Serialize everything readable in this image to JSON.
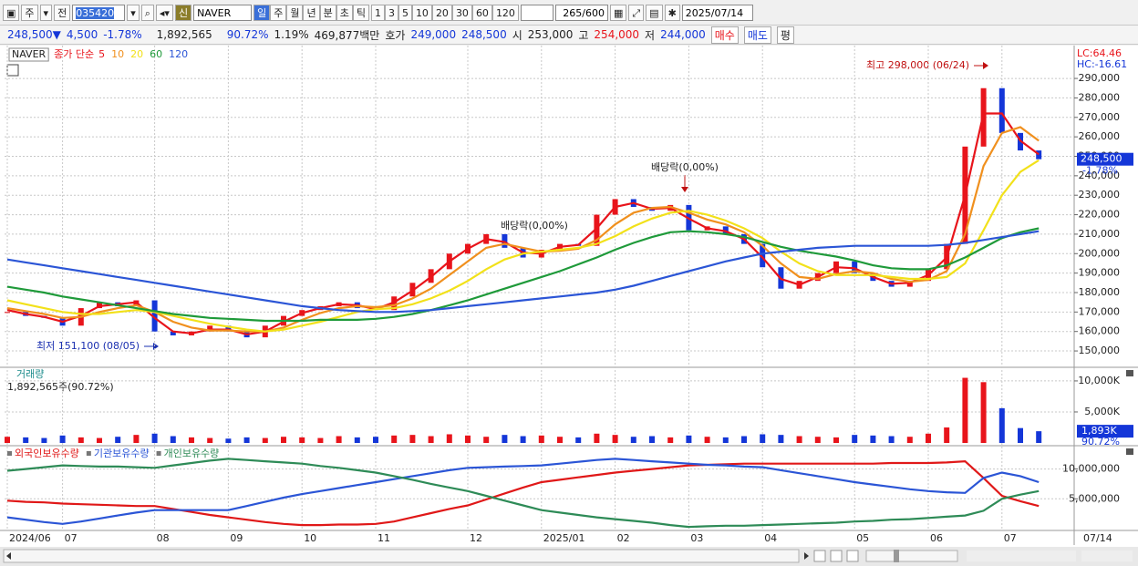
{
  "toolbar": {
    "period_prefix": "주",
    "market": "전",
    "code": "035420",
    "new_badge": "신",
    "name": "NAVER",
    "periods": [
      "일",
      "주",
      "월",
      "년",
      "분",
      "초",
      "틱"
    ],
    "intervals": [
      "1",
      "3",
      "5",
      "10",
      "20",
      "30",
      "60",
      "120"
    ],
    "count": "265",
    "max_count": "/600",
    "date": "2025/07/14"
  },
  "info_bar": {
    "price": "248,500",
    "direction": "▼",
    "change": "4,500",
    "change_pct": "-1.78%",
    "volume": "1,892,565",
    "volume_ratio": "90.72%",
    "turnover": "1.19%",
    "amount": "469,877백만",
    "quote_label": "호가",
    "ask": "249,000",
    "bid": "248,500",
    "open_label": "시",
    "open": "253,000",
    "high_label": "고",
    "high": "254,000",
    "low_label": "저",
    "low": "244,000",
    "buy": "매수",
    "sell": "매도",
    "avg": "평"
  },
  "chart_data": [
    {
      "type": "stock",
      "ma_label": "종가 단순",
      "categories": [
        "2024/06",
        null,
        null,
        "07",
        null,
        null,
        null,
        null,
        "08",
        null,
        null,
        null,
        "09",
        null,
        null,
        null,
        "10",
        null,
        null,
        null,
        "11",
        null,
        null,
        null,
        null,
        "12",
        null,
        null,
        null,
        "2025/01",
        null,
        null,
        null,
        "02",
        null,
        null,
        null,
        "03",
        null,
        null,
        null,
        "04",
        null,
        null,
        null,
        null,
        "05",
        null,
        null,
        null,
        "06",
        null,
        null,
        null,
        "07",
        null,
        null
      ],
      "x_end_label": "07/14",
      "series": [
        {
          "name": "NAVER",
          "up_color": "#e8141b",
          "down_color": "#1436d8",
          "values": [
            170000,
            168000,
            167000,
            163000,
            172000,
            175000,
            173000,
            176000,
            160000,
            158000,
            160000,
            163000,
            160000,
            157000,
            163000,
            168000,
            171000,
            173000,
            175000,
            172000,
            171000,
            178000,
            185000,
            192000,
            200000,
            205000,
            210000,
            203000,
            198000,
            202000,
            205000,
            204000,
            220000,
            228000,
            224000,
            222000,
            225000,
            212000,
            214000,
            210000,
            205000,
            193000,
            182000,
            186000,
            190000,
            196000,
            190000,
            186000,
            183000,
            186000,
            192000,
            205000,
            255000,
            285000,
            262000,
            253000,
            248500
          ]
        },
        {
          "name": "5",
          "color": "#e8141b",
          "values": [
            171000,
            169000,
            167500,
            165000,
            168000,
            173000,
            174000,
            175000,
            167000,
            160000,
            159000,
            161000,
            161000,
            158500,
            160000,
            165000,
            169500,
            172000,
            174000,
            173500,
            171500,
            175000,
            181000,
            188000,
            196000,
            202500,
            207500,
            206000,
            200500,
            200000,
            203500,
            204500,
            213000,
            224000,
            226000,
            223000,
            223500,
            218000,
            213000,
            211500,
            207500,
            198000,
            187000,
            184000,
            188000,
            193000,
            192500,
            188000,
            184500,
            185000,
            189000,
            198000,
            230000,
            272000,
            272000,
            258000,
            251000
          ]
        },
        {
          "name": "10",
          "color": "#f0901e",
          "values": [
            172000,
            170500,
            169000,
            167000,
            167500,
            170000,
            172000,
            173500,
            170000,
            165000,
            162000,
            160500,
            160500,
            160000,
            160000,
            162000,
            166000,
            169500,
            172000,
            173000,
            172500,
            173500,
            177000,
            182000,
            189000,
            196000,
            203000,
            205000,
            203000,
            201000,
            201500,
            202500,
            207000,
            215000,
            221000,
            223500,
            224000,
            221000,
            217500,
            215000,
            211000,
            204000,
            195000,
            188000,
            187000,
            189500,
            191000,
            190000,
            187000,
            185500,
            186500,
            191000,
            210000,
            245000,
            262000,
            265000,
            258000
          ]
        },
        {
          "name": "20",
          "color": "#f2e11a",
          "values": [
            176000,
            174000,
            172000,
            170000,
            169000,
            169000,
            170000,
            171000,
            170000,
            168000,
            166000,
            164000,
            162500,
            161000,
            160000,
            161000,
            163000,
            165000,
            167500,
            170000,
            171500,
            172000,
            174000,
            177000,
            181000,
            186000,
            192000,
            197000,
            200000,
            201000,
            202000,
            203000,
            205000,
            209000,
            214000,
            218000,
            221000,
            222000,
            220000,
            217000,
            213000,
            208000,
            201000,
            195000,
            191000,
            189000,
            189000,
            189000,
            188000,
            187000,
            187000,
            188000,
            195000,
            212000,
            230000,
            242000,
            248000
          ]
        },
        {
          "name": "60",
          "color": "#1f9a3a",
          "values": [
            183000,
            181500,
            180000,
            178000,
            176500,
            175000,
            173500,
            172000,
            170500,
            169000,
            168000,
            167000,
            166500,
            166000,
            165500,
            165500,
            165500,
            166000,
            166000,
            166000,
            166500,
            167500,
            169000,
            171000,
            173500,
            176000,
            179000,
            182000,
            185000,
            188000,
            191000,
            194500,
            198000,
            202000,
            205500,
            208500,
            211000,
            211500,
            211000,
            210000,
            208500,
            206000,
            203500,
            201500,
            200000,
            198500,
            196500,
            194000,
            192500,
            192000,
            192000,
            194000,
            198000,
            203000,
            208000,
            211000,
            213000
          ]
        },
        {
          "name": "120",
          "color": "#2b55d6",
          "values": [
            197000,
            195500,
            194000,
            192500,
            191000,
            189500,
            188000,
            186500,
            185000,
            183500,
            182000,
            180500,
            179000,
            177500,
            176000,
            174500,
            173000,
            172000,
            171000,
            170500,
            170000,
            170000,
            170500,
            171000,
            172000,
            173000,
            174000,
            175000,
            176000,
            177000,
            178000,
            179000,
            180000,
            181500,
            183500,
            186000,
            188500,
            191000,
            193500,
            196000,
            198000,
            200000,
            201000,
            202000,
            203000,
            203500,
            204000,
            204000,
            204000,
            204000,
            204000,
            204500,
            205500,
            207000,
            208500,
            210000,
            211500
          ]
        }
      ],
      "ylim": [
        141600,
        300800
      ],
      "yticks": [
        {
          "value": 150000,
          "label": "150,000"
        },
        {
          "value": 160000,
          "label": "160,000"
        },
        {
          "value": 170000,
          "label": "170,000"
        },
        {
          "value": 180000,
          "label": "180,000"
        },
        {
          "value": 190000,
          "label": "190,000"
        },
        {
          "value": 200000,
          "label": "200,000"
        },
        {
          "value": 210000,
          "label": "210,000"
        },
        {
          "value": 220000,
          "label": "220,000"
        },
        {
          "value": 230000,
          "label": "230,000"
        },
        {
          "value": 240000,
          "label": "240,000"
        },
        {
          "value": 250000,
          "label": "250,000"
        },
        {
          "value": 260000,
          "label": "260,000"
        },
        {
          "value": 270000,
          "label": "270,000"
        },
        {
          "value": 280000,
          "label": "280,000"
        },
        {
          "value": 290000,
          "label": "290,000"
        }
      ],
      "grid": true,
      "current_label": "248,500",
      "current_change": "-1.78%",
      "lc_label": "LC:64.46",
      "hc_label": "HC:-16.61",
      "annotations": [
        "최고 298,000 (06/24)",
        "최저 151,100 (08/05)",
        "배당락(0,00%)",
        "배당락(0,00%)"
      ]
    },
    {
      "type": "bar",
      "title": "거래량",
      "subtitle": "1,892,565주(90.72%)",
      "values": [
        1000,
        900,
        800,
        1200,
        900,
        800,
        1000,
        1300,
        1500,
        1100,
        900,
        800,
        700,
        900,
        800,
        1000,
        900,
        800,
        1100,
        900,
        1000,
        1200,
        1300,
        1100,
        1400,
        1200,
        1000,
        1300,
        1100,
        1200,
        1000,
        900,
        1500,
        1300,
        1000,
        1100,
        900,
        1200,
        1000,
        900,
        1100,
        1400,
        1300,
        1100,
        1000,
        900,
        1300,
        1200,
        1100,
        1000,
        1500,
        2500,
        10500,
        9800,
        5600,
        2400,
        1893
      ],
      "ylim": [
        -440,
        11900
      ],
      "yticks": [
        {
          "value": 5000,
          "label": "5,000K"
        },
        {
          "value": 10000,
          "label": "10,000K"
        }
      ],
      "current_label": "1,893K",
      "current_ratio": "90.72%"
    },
    {
      "type": "line",
      "series": [
        {
          "name": "외국인보유수량",
          "color": "#e01818",
          "values": [
            4700000,
            4500000,
            4400000,
            4200000,
            4100000,
            4000000,
            3900000,
            3800000,
            3800000,
            3300000,
            2800000,
            2300000,
            1900000,
            1500000,
            1100000,
            800000,
            600000,
            600000,
            700000,
            700000,
            800000,
            1200000,
            1900000,
            2600000,
            3300000,
            3900000,
            4900000,
            5900000,
            6900000,
            7800000,
            8200000,
            8600000,
            9000000,
            9400000,
            9700000,
            10000000,
            10300000,
            10600000,
            10700000,
            10800000,
            10900000,
            10900000,
            10900000,
            10900000,
            10900000,
            10900000,
            10900000,
            10900000,
            11000000,
            11000000,
            11000000,
            11100000,
            11300000,
            8500000,
            5500000,
            4600000,
            3800000
          ]
        },
        {
          "name": "기관보유수량",
          "color": "#2b55d6",
          "values": [
            1900000,
            1500000,
            1100000,
            800000,
            1200000,
            1700000,
            2200000,
            2700000,
            3100000,
            3100000,
            3100000,
            3100000,
            3100000,
            3800000,
            4500000,
            5200000,
            5800000,
            6300000,
            6800000,
            7300000,
            7800000,
            8300000,
            8800000,
            9300000,
            9800000,
            10200000,
            10300000,
            10400000,
            10500000,
            10600000,
            10900000,
            11200000,
            11500000,
            11700000,
            11500000,
            11300000,
            11100000,
            10900000,
            10700000,
            10600000,
            10400000,
            10300000,
            9800000,
            9300000,
            8800000,
            8300000,
            7800000,
            7400000,
            7000000,
            6600000,
            6300000,
            6100000,
            6000000,
            8500000,
            9400000,
            8800000,
            7800000
          ]
        },
        {
          "name": "개인보유수량",
          "color": "#2e8b57",
          "values": [
            9700000,
            10000000,
            10300000,
            10600000,
            10500000,
            10400000,
            10400000,
            10300000,
            10200000,
            10600000,
            11000000,
            11400000,
            11700000,
            11500000,
            11300000,
            11100000,
            10900000,
            10500000,
            10200000,
            9800000,
            9400000,
            8800000,
            8200000,
            7500000,
            6900000,
            6300000,
            5500000,
            4700000,
            3900000,
            3100000,
            2700000,
            2300000,
            1900000,
            1600000,
            1300000,
            1000000,
            600000,
            300000,
            400000,
            500000,
            500000,
            600000,
            700000,
            800000,
            900000,
            1000000,
            1200000,
            1300000,
            1500000,
            1600000,
            1800000,
            2000000,
            2200000,
            3000000,
            5000000,
            5700000,
            6300000
          ]
        }
      ],
      "ylim": [
        -300000,
        13600000
      ],
      "yticks": [
        {
          "value": 5000000,
          "label": "5,000,000"
        },
        {
          "value": 10000000,
          "label": "10,000,000"
        }
      ]
    }
  ]
}
